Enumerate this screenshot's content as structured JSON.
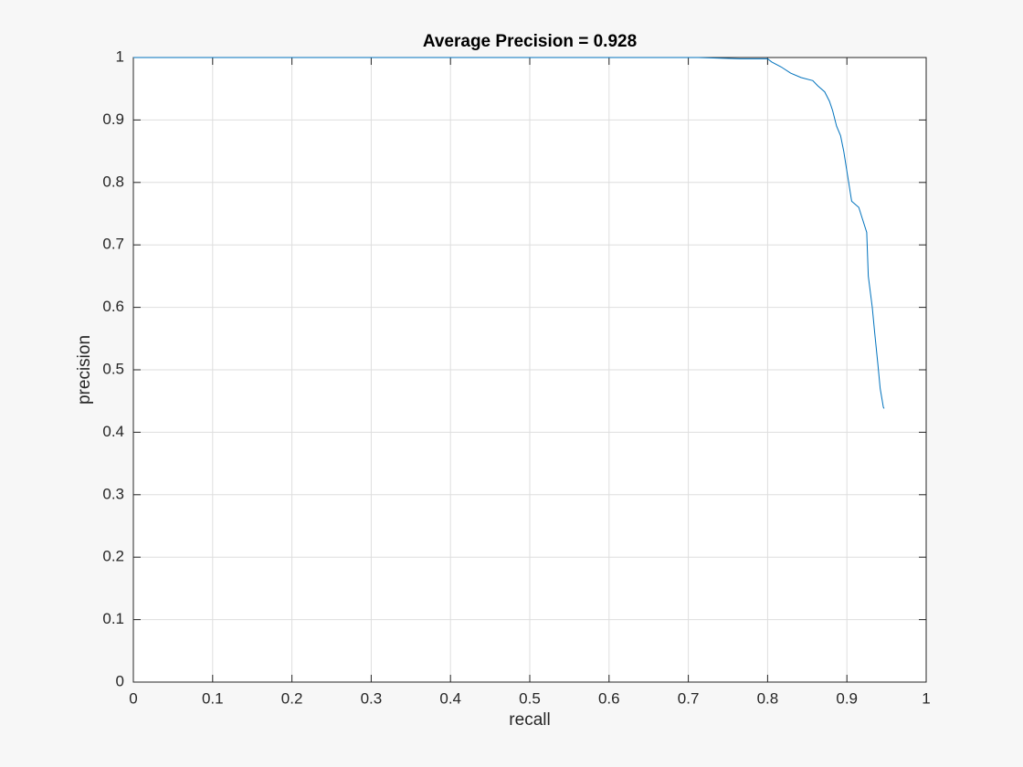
{
  "chart_data": {
    "type": "line",
    "title": "Average Precision = 0.928",
    "xlabel": "recall",
    "ylabel": "precision",
    "x": [
      0,
      0.713,
      0.765,
      0.8,
      0.805,
      0.817,
      0.829,
      0.842,
      0.857,
      0.863,
      0.872,
      0.878,
      0.882,
      0.887,
      0.892,
      0.896,
      0.901,
      0.906,
      0.915,
      0.92,
      0.925,
      0.927,
      0.932,
      0.935,
      0.939,
      0.942,
      0.946,
      0.947
    ],
    "series": [
      {
        "color": "#0072bd",
        "values": [
          1,
          1,
          0.998,
          0.998,
          0.993,
          0.985,
          0.975,
          0.968,
          0.963,
          0.955,
          0.945,
          0.93,
          0.915,
          0.89,
          0.875,
          0.85,
          0.81,
          0.77,
          0.76,
          0.74,
          0.72,
          0.65,
          0.6,
          0.56,
          0.51,
          0.47,
          0.44,
          0.438
        ]
      }
    ],
    "xlim": [
      0,
      1
    ],
    "ylim": [
      0,
      1
    ],
    "xticks": [
      0,
      0.1,
      0.2,
      0.3,
      0.4,
      0.5,
      0.6,
      0.7,
      0.8,
      0.9,
      1
    ],
    "yticks": [
      0,
      0.1,
      0.2,
      0.3,
      0.4,
      0.5,
      0.6,
      0.7,
      0.8,
      0.9,
      1
    ],
    "grid": true
  }
}
